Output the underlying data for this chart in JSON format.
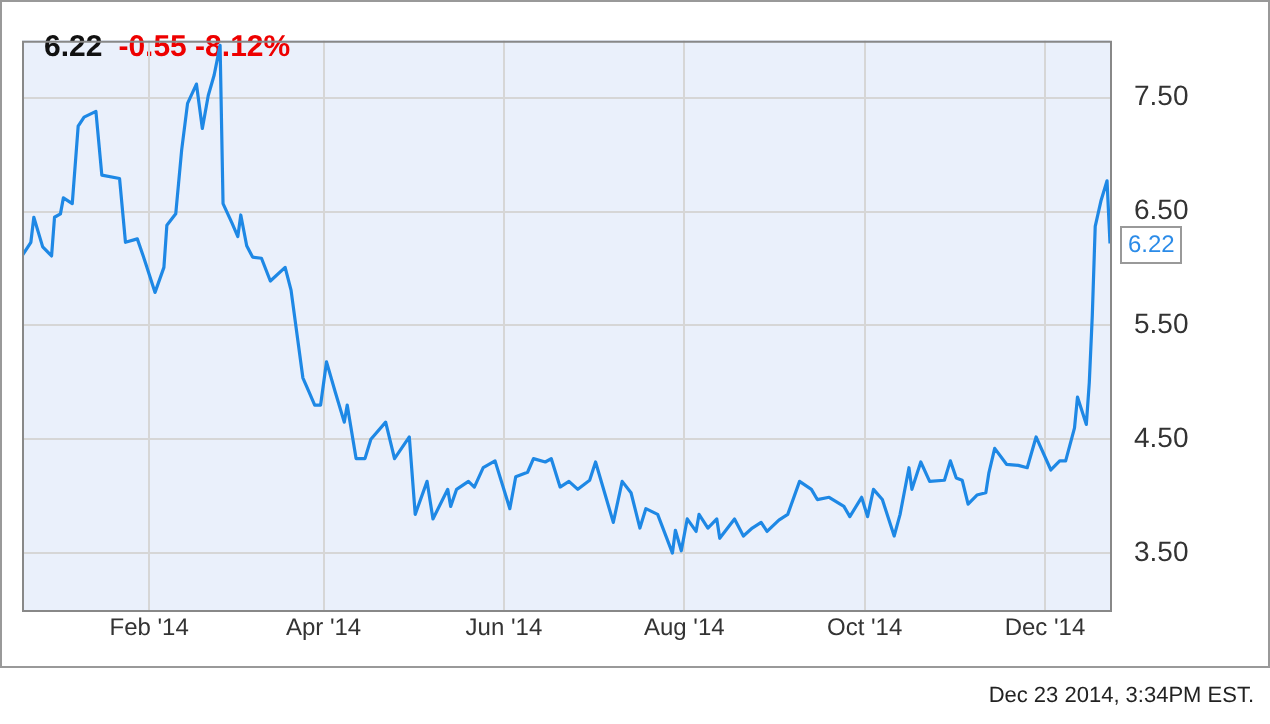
{
  "chart_data": {
    "type": "line",
    "title": "6.22",
    "subtitle": "-0.55  -8.12%",
    "annotations": [
      {
        "text": "6.22",
        "x": "2014-12-23",
        "y": 6.22
      },
      "Dec 23 2014, 3:34PM EST."
    ],
    "x": [
      "2013-12-20",
      "2013-12-23",
      "2013-12-24",
      "2013-12-27",
      "2013-12-30",
      "2013-12-31",
      "2014-01-02",
      "2014-01-03",
      "2014-01-06",
      "2014-01-08",
      "2014-01-10",
      "2014-01-14",
      "2014-01-16",
      "2014-01-22",
      "2014-01-24",
      "2014-01-28",
      "2014-01-30",
      "2014-01-31",
      "2014-02-03",
      "2014-02-06",
      "2014-02-07",
      "2014-02-10",
      "2014-02-12",
      "2014-02-14",
      "2014-02-17",
      "2014-02-19",
      "2014-02-21",
      "2014-02-23",
      "2014-02-25",
      "2014-02-26",
      "2014-03-01",
      "2014-03-03",
      "2014-03-04",
      "2014-03-06",
      "2014-03-08",
      "2014-03-11",
      "2014-03-14",
      "2014-03-19",
      "2014-03-21",
      "2014-03-25",
      "2014-03-27",
      "2014-03-29",
      "2014-03-31",
      "2014-04-02",
      "2014-04-05",
      "2014-04-08",
      "2014-04-09",
      "2014-04-12",
      "2014-04-15",
      "2014-04-17",
      "2014-04-22",
      "2014-04-25",
      "2014-04-30",
      "2014-05-02",
      "2014-05-06",
      "2014-05-08",
      "2014-05-13",
      "2014-05-14",
      "2014-05-16",
      "2014-05-20",
      "2014-05-22",
      "2014-05-25",
      "2014-05-29",
      "2014-06-03",
      "2014-06-05",
      "2014-06-09",
      "2014-06-11",
      "2014-06-15",
      "2014-06-17",
      "2014-06-20",
      "2014-06-23",
      "2014-06-26",
      "2014-06-30",
      "2014-07-02",
      "2014-07-08",
      "2014-07-11",
      "2014-07-14",
      "2014-07-17",
      "2014-07-19",
      "2014-07-23",
      "2014-07-28",
      "2014-07-29",
      "2014-07-31",
      "2014-08-02",
      "2014-08-05",
      "2014-08-06",
      "2014-08-09",
      "2014-08-12",
      "2014-08-13",
      "2014-08-18",
      "2014-08-21",
      "2014-08-24",
      "2014-08-27",
      "2014-08-29",
      "2014-09-02",
      "2014-09-05",
      "2014-09-09",
      "2014-09-13",
      "2014-09-15",
      "2014-09-19",
      "2014-09-24",
      "2014-09-26",
      "2014-09-30",
      "2014-10-02",
      "2014-10-04",
      "2014-10-07",
      "2014-10-11",
      "2014-10-13",
      "2014-10-16",
      "2014-10-17",
      "2014-10-20",
      "2014-10-23",
      "2014-10-28",
      "2014-10-30",
      "2014-11-01",
      "2014-11-03",
      "2014-11-05",
      "2014-11-08",
      "2014-11-11",
      "2014-11-12",
      "2014-11-14",
      "2014-11-18",
      "2014-11-22",
      "2014-11-25",
      "2014-11-28",
      "2014-12-03",
      "2014-12-06",
      "2014-12-08",
      "2014-12-11",
      "2014-12-12",
      "2014-12-15",
      "2014-12-16",
      "2014-12-17",
      "2014-12-18",
      "2014-12-20",
      "2014-12-22",
      "2014-12-23"
    ],
    "values": [
      6.11,
      6.23,
      6.45,
      6.19,
      6.11,
      6.45,
      6.48,
      6.62,
      6.57,
      7.25,
      7.33,
      7.38,
      6.82,
      6.79,
      6.23,
      6.26,
      6.11,
      6.03,
      5.79,
      6.01,
      6.38,
      6.48,
      7.04,
      7.45,
      7.62,
      7.23,
      7.52,
      7.7,
      7.96,
      6.57,
      6.4,
      6.28,
      6.47,
      6.2,
      6.1,
      6.09,
      5.89,
      6.01,
      5.81,
      5.04,
      4.92,
      4.8,
      4.8,
      5.18,
      4.91,
      4.65,
      4.8,
      4.33,
      4.33,
      4.5,
      4.65,
      4.33,
      4.52,
      3.84,
      4.13,
      3.8,
      4.06,
      3.91,
      4.06,
      4.13,
      4.08,
      4.25,
      4.31,
      3.89,
      4.17,
      4.21,
      4.33,
      4.3,
      4.33,
      4.08,
      4.13,
      4.06,
      4.14,
      4.3,
      3.77,
      4.13,
      4.03,
      3.72,
      3.89,
      3.84,
      3.5,
      3.7,
      3.52,
      3.8,
      3.69,
      3.84,
      3.72,
      3.8,
      3.63,
      3.8,
      3.65,
      3.72,
      3.77,
      3.69,
      3.79,
      3.84,
      4.13,
      4.06,
      3.97,
      3.99,
      3.91,
      3.82,
      3.99,
      3.82,
      4.06,
      3.97,
      3.65,
      3.84,
      4.25,
      4.06,
      4.3,
      4.13,
      4.14,
      4.31,
      4.16,
      4.14,
      3.93,
      4.01,
      4.03,
      4.2,
      4.42,
      4.28,
      4.27,
      4.25,
      4.52,
      4.23,
      4.31,
      4.31,
      4.6,
      4.87,
      4.63,
      5.0,
      5.58,
      6.37,
      6.6,
      6.77,
      6.22
    ],
    "color": "#1e88e5",
    "xlim": [
      "2013-12-20",
      "2014-12-23"
    ],
    "xticks": [
      {
        "value": "2014-02-01",
        "label": "Feb '14"
      },
      {
        "value": "2014-04-01",
        "label": "Apr '14"
      },
      {
        "value": "2014-06-01",
        "label": "Jun '14"
      },
      {
        "value": "2014-08-01",
        "label": "Aug '14"
      },
      {
        "value": "2014-10-01",
        "label": "Oct '14"
      },
      {
        "value": "2014-12-01",
        "label": "Dec '14"
      }
    ],
    "ylim": [
      3.0,
      8.0
    ],
    "yticks": [
      {
        "value": 3.5,
        "label": "3.50"
      },
      {
        "value": 4.5,
        "label": "4.50"
      },
      {
        "value": 5.5,
        "label": "5.50"
      },
      {
        "value": 6.5,
        "label": "6.50"
      },
      {
        "value": 7.5,
        "label": "7.50"
      }
    ],
    "grid": true
  }
}
